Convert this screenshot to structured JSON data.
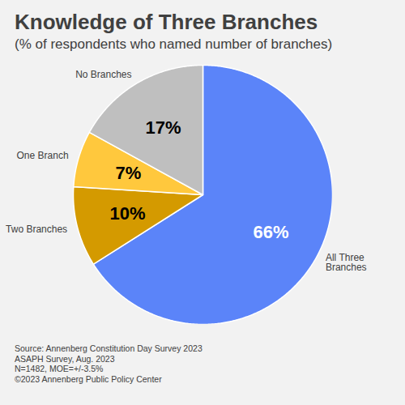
{
  "chart_data": {
    "type": "pie",
    "title": "Knowledge of Three Branches",
    "subtitle": "(% of respondents who named number of branches)",
    "categories": [
      "All Three Branches",
      "Two Branches",
      "One Branch",
      "No Branches"
    ],
    "values": [
      66,
      10,
      7,
      17
    ],
    "value_labels": [
      "66%",
      "10%",
      "7%",
      "17%"
    ],
    "colors": [
      "#5b84f9",
      "#d49a00",
      "#ffc83d",
      "#bfbfbf"
    ],
    "data_labels": true,
    "caption": [
      "Source: Annenberg Constitution Day Survey 2023",
      "ASAPH Survey, Aug. 2023",
      "N=1482, MOE=+/-3.5%",
      "©2023 Annenberg Public Policy Center"
    ]
  }
}
